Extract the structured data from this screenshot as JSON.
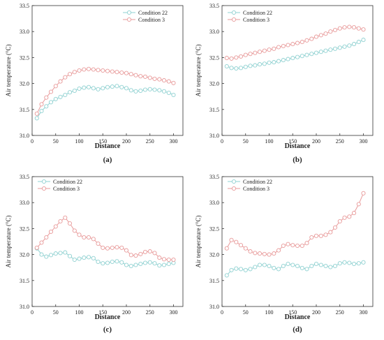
{
  "chart_data": [
    {
      "type": "line",
      "panel_label": "(a)",
      "xlabel": "Distance",
      "ylabel": "Air temperature (°C)",
      "xlim": [
        0,
        320
      ],
      "ylim": [
        31.0,
        33.5
      ],
      "x_ticks": [
        "0",
        "50",
        "100",
        "150",
        "200",
        "250",
        "300"
      ],
      "y_ticks": [
        "31.0",
        "31.5",
        "32.0",
        "32.5",
        "33.0",
        "33.5"
      ],
      "legend_position": "top-center",
      "x": [
        10,
        20,
        30,
        40,
        50,
        60,
        70,
        80,
        90,
        100,
        110,
        120,
        130,
        140,
        150,
        160,
        170,
        180,
        190,
        200,
        210,
        220,
        230,
        240,
        250,
        260,
        270,
        280,
        290,
        300
      ],
      "series": [
        {
          "name": "Condition 22",
          "color": "#8fd1d1",
          "values": [
            31.33,
            31.47,
            31.56,
            31.64,
            31.7,
            31.74,
            31.78,
            31.83,
            31.86,
            31.9,
            31.92,
            31.93,
            31.91,
            31.89,
            31.91,
            31.93,
            31.94,
            31.95,
            31.93,
            31.91,
            31.87,
            31.85,
            31.86,
            31.88,
            31.89,
            31.88,
            31.87,
            31.85,
            31.82,
            31.78
          ]
        },
        {
          "name": "Condition 3",
          "color": "#e89a9a",
          "values": [
            31.42,
            31.6,
            31.73,
            31.84,
            31.95,
            32.04,
            32.12,
            32.18,
            32.22,
            32.25,
            32.27,
            32.28,
            32.27,
            32.26,
            32.25,
            32.24,
            32.23,
            32.22,
            32.21,
            32.2,
            32.18,
            32.16,
            32.14,
            32.13,
            32.11,
            32.09,
            32.08,
            32.06,
            32.04,
            32.01
          ]
        }
      ]
    },
    {
      "type": "line",
      "panel_label": "(b)",
      "xlabel": "Distance",
      "ylabel": "Air temperature (°C)",
      "xlim": [
        0,
        320
      ],
      "ylim": [
        31.0,
        33.5
      ],
      "x_ticks": [
        "0",
        "50",
        "100",
        "150",
        "200",
        "250",
        "300"
      ],
      "y_ticks": [
        "31.0",
        "31.5",
        "32.0",
        "32.5",
        "33.0",
        "33.5"
      ],
      "legend_position": "top-left",
      "x": [
        10,
        20,
        30,
        40,
        50,
        60,
        70,
        80,
        90,
        100,
        110,
        120,
        130,
        140,
        150,
        160,
        170,
        180,
        190,
        200,
        210,
        220,
        230,
        240,
        250,
        260,
        270,
        280,
        290,
        300
      ],
      "series": [
        {
          "name": "Condition 22",
          "color": "#8fd1d1",
          "values": [
            32.33,
            32.3,
            32.29,
            32.3,
            32.32,
            32.34,
            32.35,
            32.37,
            32.38,
            32.4,
            32.41,
            32.43,
            32.45,
            32.47,
            32.49,
            32.51,
            32.53,
            32.55,
            32.57,
            32.59,
            32.61,
            32.63,
            32.65,
            32.67,
            32.69,
            32.71,
            32.73,
            32.76,
            32.8,
            32.84
          ]
        },
        {
          "name": "Condition 3",
          "color": "#e89a9a",
          "values": [
            32.49,
            32.48,
            32.5,
            32.52,
            32.55,
            32.57,
            32.59,
            32.61,
            32.63,
            32.65,
            32.67,
            32.7,
            32.72,
            32.74,
            32.76,
            32.78,
            32.8,
            32.83,
            32.86,
            32.9,
            32.93,
            32.96,
            33.0,
            33.03,
            33.06,
            33.08,
            33.09,
            33.08,
            33.06,
            33.04
          ]
        }
      ]
    },
    {
      "type": "line",
      "panel_label": "(c)",
      "xlabel": "Distance",
      "ylabel": "Air temperature (°C)",
      "xlim": [
        0,
        320
      ],
      "ylim": [
        31.0,
        33.5
      ],
      "x_ticks": [
        "0",
        "50",
        "100",
        "150",
        "200",
        "250",
        "300"
      ],
      "y_ticks": [
        "31.0",
        "31.5",
        "32.0",
        "32.5",
        "33.0",
        "33.5"
      ],
      "legend_position": "top-left",
      "x": [
        10,
        20,
        30,
        40,
        50,
        60,
        70,
        80,
        90,
        100,
        110,
        120,
        130,
        140,
        150,
        160,
        170,
        180,
        190,
        200,
        210,
        220,
        230,
        240,
        250,
        260,
        270,
        280,
        290,
        300
      ],
      "series": [
        {
          "name": "Condition 22",
          "color": "#8fd1d1",
          "values": [
            32.12,
            32.0,
            31.96,
            31.99,
            32.02,
            32.03,
            32.04,
            31.97,
            31.9,
            31.92,
            31.94,
            31.95,
            31.93,
            31.86,
            31.83,
            31.84,
            31.86,
            31.87,
            31.85,
            31.8,
            31.78,
            31.8,
            31.82,
            31.84,
            31.85,
            31.83,
            31.79,
            31.8,
            31.82,
            31.84
          ]
        },
        {
          "name": "Condition 3",
          "color": "#e89a9a",
          "values": [
            32.13,
            32.23,
            32.33,
            32.44,
            32.54,
            32.64,
            32.71,
            32.6,
            32.46,
            32.38,
            32.33,
            32.33,
            32.3,
            32.21,
            32.13,
            32.12,
            32.13,
            32.14,
            32.13,
            32.08,
            31.99,
            31.98,
            32.01,
            32.05,
            32.06,
            32.03,
            31.94,
            31.91,
            31.9,
            31.9
          ]
        }
      ]
    },
    {
      "type": "line",
      "panel_label": "(d)",
      "xlabel": "Distance",
      "ylabel": "Air temperature (°C)",
      "xlim": [
        0,
        320
      ],
      "ylim": [
        31.0,
        33.5
      ],
      "x_ticks": [
        "0",
        "50",
        "100",
        "150",
        "200",
        "250",
        "300"
      ],
      "y_ticks": [
        "31.0",
        "31.5",
        "32.0",
        "32.5",
        "33.0",
        "33.5"
      ],
      "legend_position": "top-left",
      "x": [
        10,
        20,
        30,
        40,
        50,
        60,
        70,
        80,
        90,
        100,
        110,
        120,
        130,
        140,
        150,
        160,
        170,
        180,
        190,
        200,
        210,
        220,
        230,
        240,
        250,
        260,
        270,
        280,
        290,
        300
      ],
      "series": [
        {
          "name": "Condition 22",
          "color": "#8fd1d1",
          "values": [
            31.6,
            31.7,
            31.73,
            31.72,
            31.7,
            31.72,
            31.76,
            31.8,
            31.8,
            31.78,
            31.74,
            31.72,
            31.78,
            31.82,
            31.8,
            31.78,
            31.74,
            31.72,
            31.78,
            31.82,
            31.8,
            31.78,
            31.76,
            31.78,
            31.83,
            31.85,
            31.84,
            31.82,
            31.83,
            31.85
          ]
        },
        {
          "name": "Condition 3",
          "color": "#e89a9a",
          "values": [
            32.12,
            32.28,
            32.24,
            32.18,
            32.12,
            32.06,
            32.03,
            32.02,
            32.01,
            32.0,
            32.02,
            32.08,
            32.17,
            32.2,
            32.18,
            32.17,
            32.17,
            32.22,
            32.33,
            32.36,
            32.36,
            32.38,
            32.43,
            32.52,
            32.64,
            32.71,
            32.73,
            32.8,
            32.97,
            33.18
          ]
        }
      ]
    }
  ]
}
